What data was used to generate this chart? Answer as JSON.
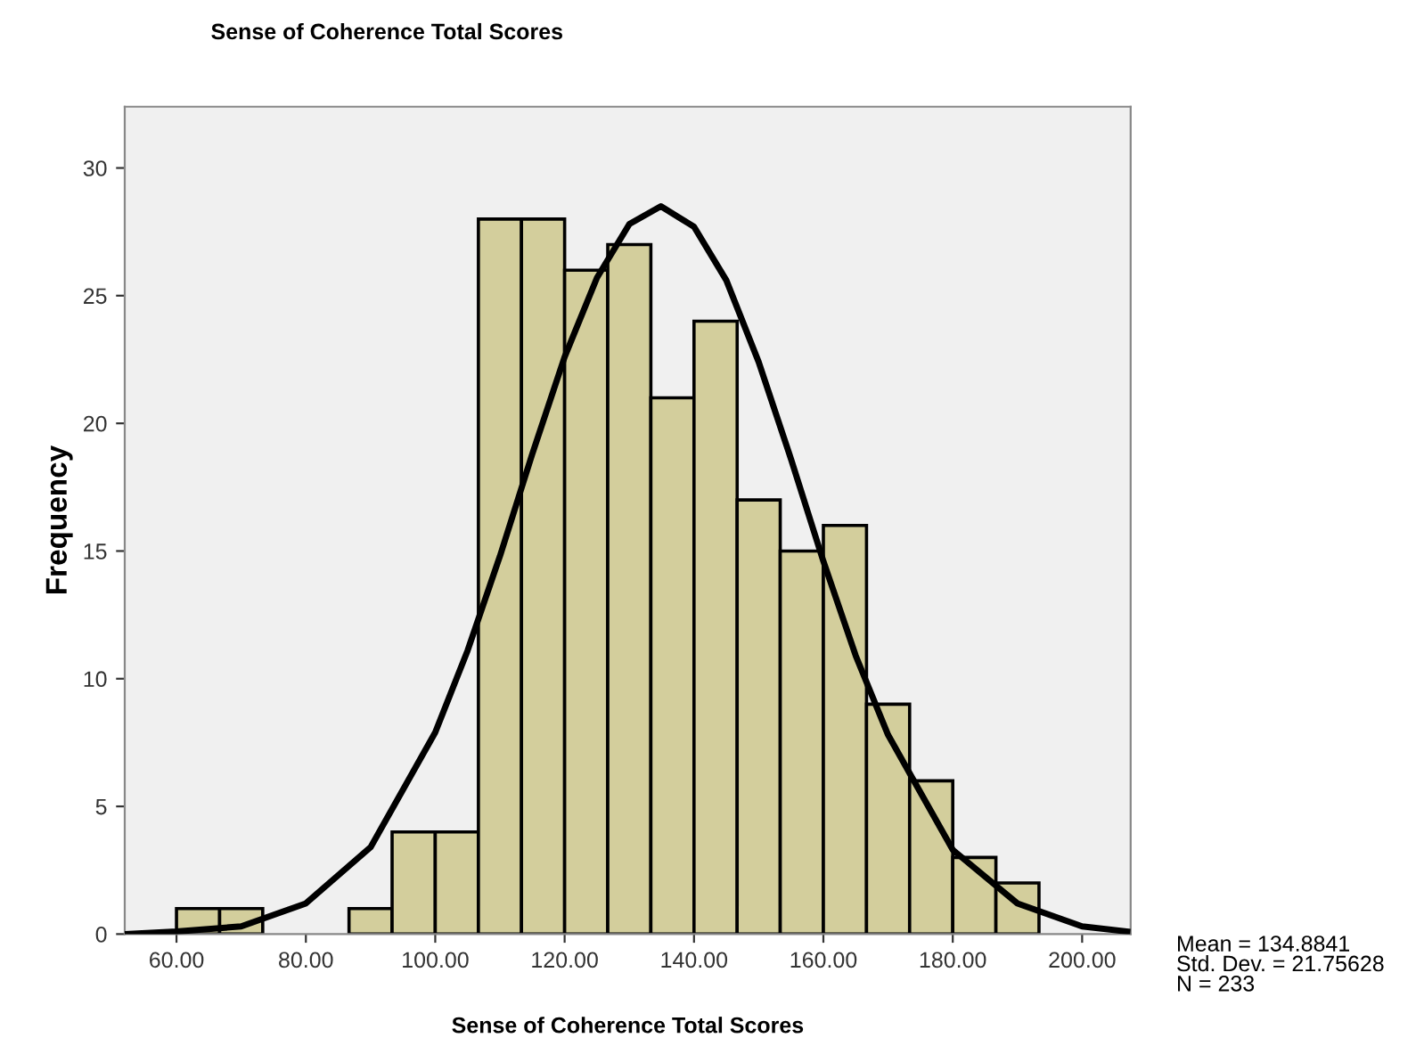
{
  "chart_data": {
    "type": "histogram",
    "title": "Sense of Coherence Total Scores",
    "xlabel": "Sense of Coherence Total Scores",
    "ylabel": "Frequency",
    "series": [
      {
        "color": "#d3ce9c",
        "bins": [
          60,
          66.67,
          73.33,
          80,
          86.67,
          93.33,
          100,
          106.67,
          113.33,
          120,
          126.67,
          133.33,
          140,
          146.67,
          153.33,
          160,
          166.67,
          173.33,
          180,
          186.67,
          193.33
        ],
        "values": [
          1,
          1,
          0,
          0,
          1,
          4,
          4,
          28,
          28,
          26,
          27,
          21,
          24,
          17,
          15,
          16,
          9,
          6,
          3,
          2
        ]
      },
      {
        "type": "line",
        "color": "#000000",
        "x": [
          52,
          60,
          70,
          80,
          90,
          100,
          105,
          110,
          115,
          120,
          125,
          130,
          134.88,
          140,
          145,
          150,
          155,
          160,
          165,
          170,
          180,
          190,
          200,
          207
        ],
        "values": [
          0.0,
          0.1,
          0.3,
          1.2,
          3.4,
          7.9,
          11.1,
          14.8,
          18.8,
          22.6,
          25.7,
          27.8,
          28.5,
          27.7,
          25.6,
          22.4,
          18.6,
          14.6,
          10.9,
          7.8,
          3.3,
          1.2,
          0.3,
          0.1
        ]
      }
    ],
    "xlim": [
      52,
      207.5
    ],
    "ylim": [
      0,
      32.4
    ],
    "xticks": [
      {
        "value": 60,
        "label": "60.00"
      },
      {
        "value": 80,
        "label": "80.00"
      },
      {
        "value": 100,
        "label": "100.00"
      },
      {
        "value": 120,
        "label": "120.00"
      },
      {
        "value": 140,
        "label": "140.00"
      },
      {
        "value": 160,
        "label": "160.00"
      },
      {
        "value": 180,
        "label": "180.00"
      },
      {
        "value": 200,
        "label": "200.00"
      }
    ],
    "yticks": [
      0,
      5,
      10,
      15,
      20,
      25,
      30
    ],
    "grid": false,
    "annotations": [
      "Mean = 134.8841\nStd. Dev. = 21.75628\nN = 233"
    ]
  }
}
